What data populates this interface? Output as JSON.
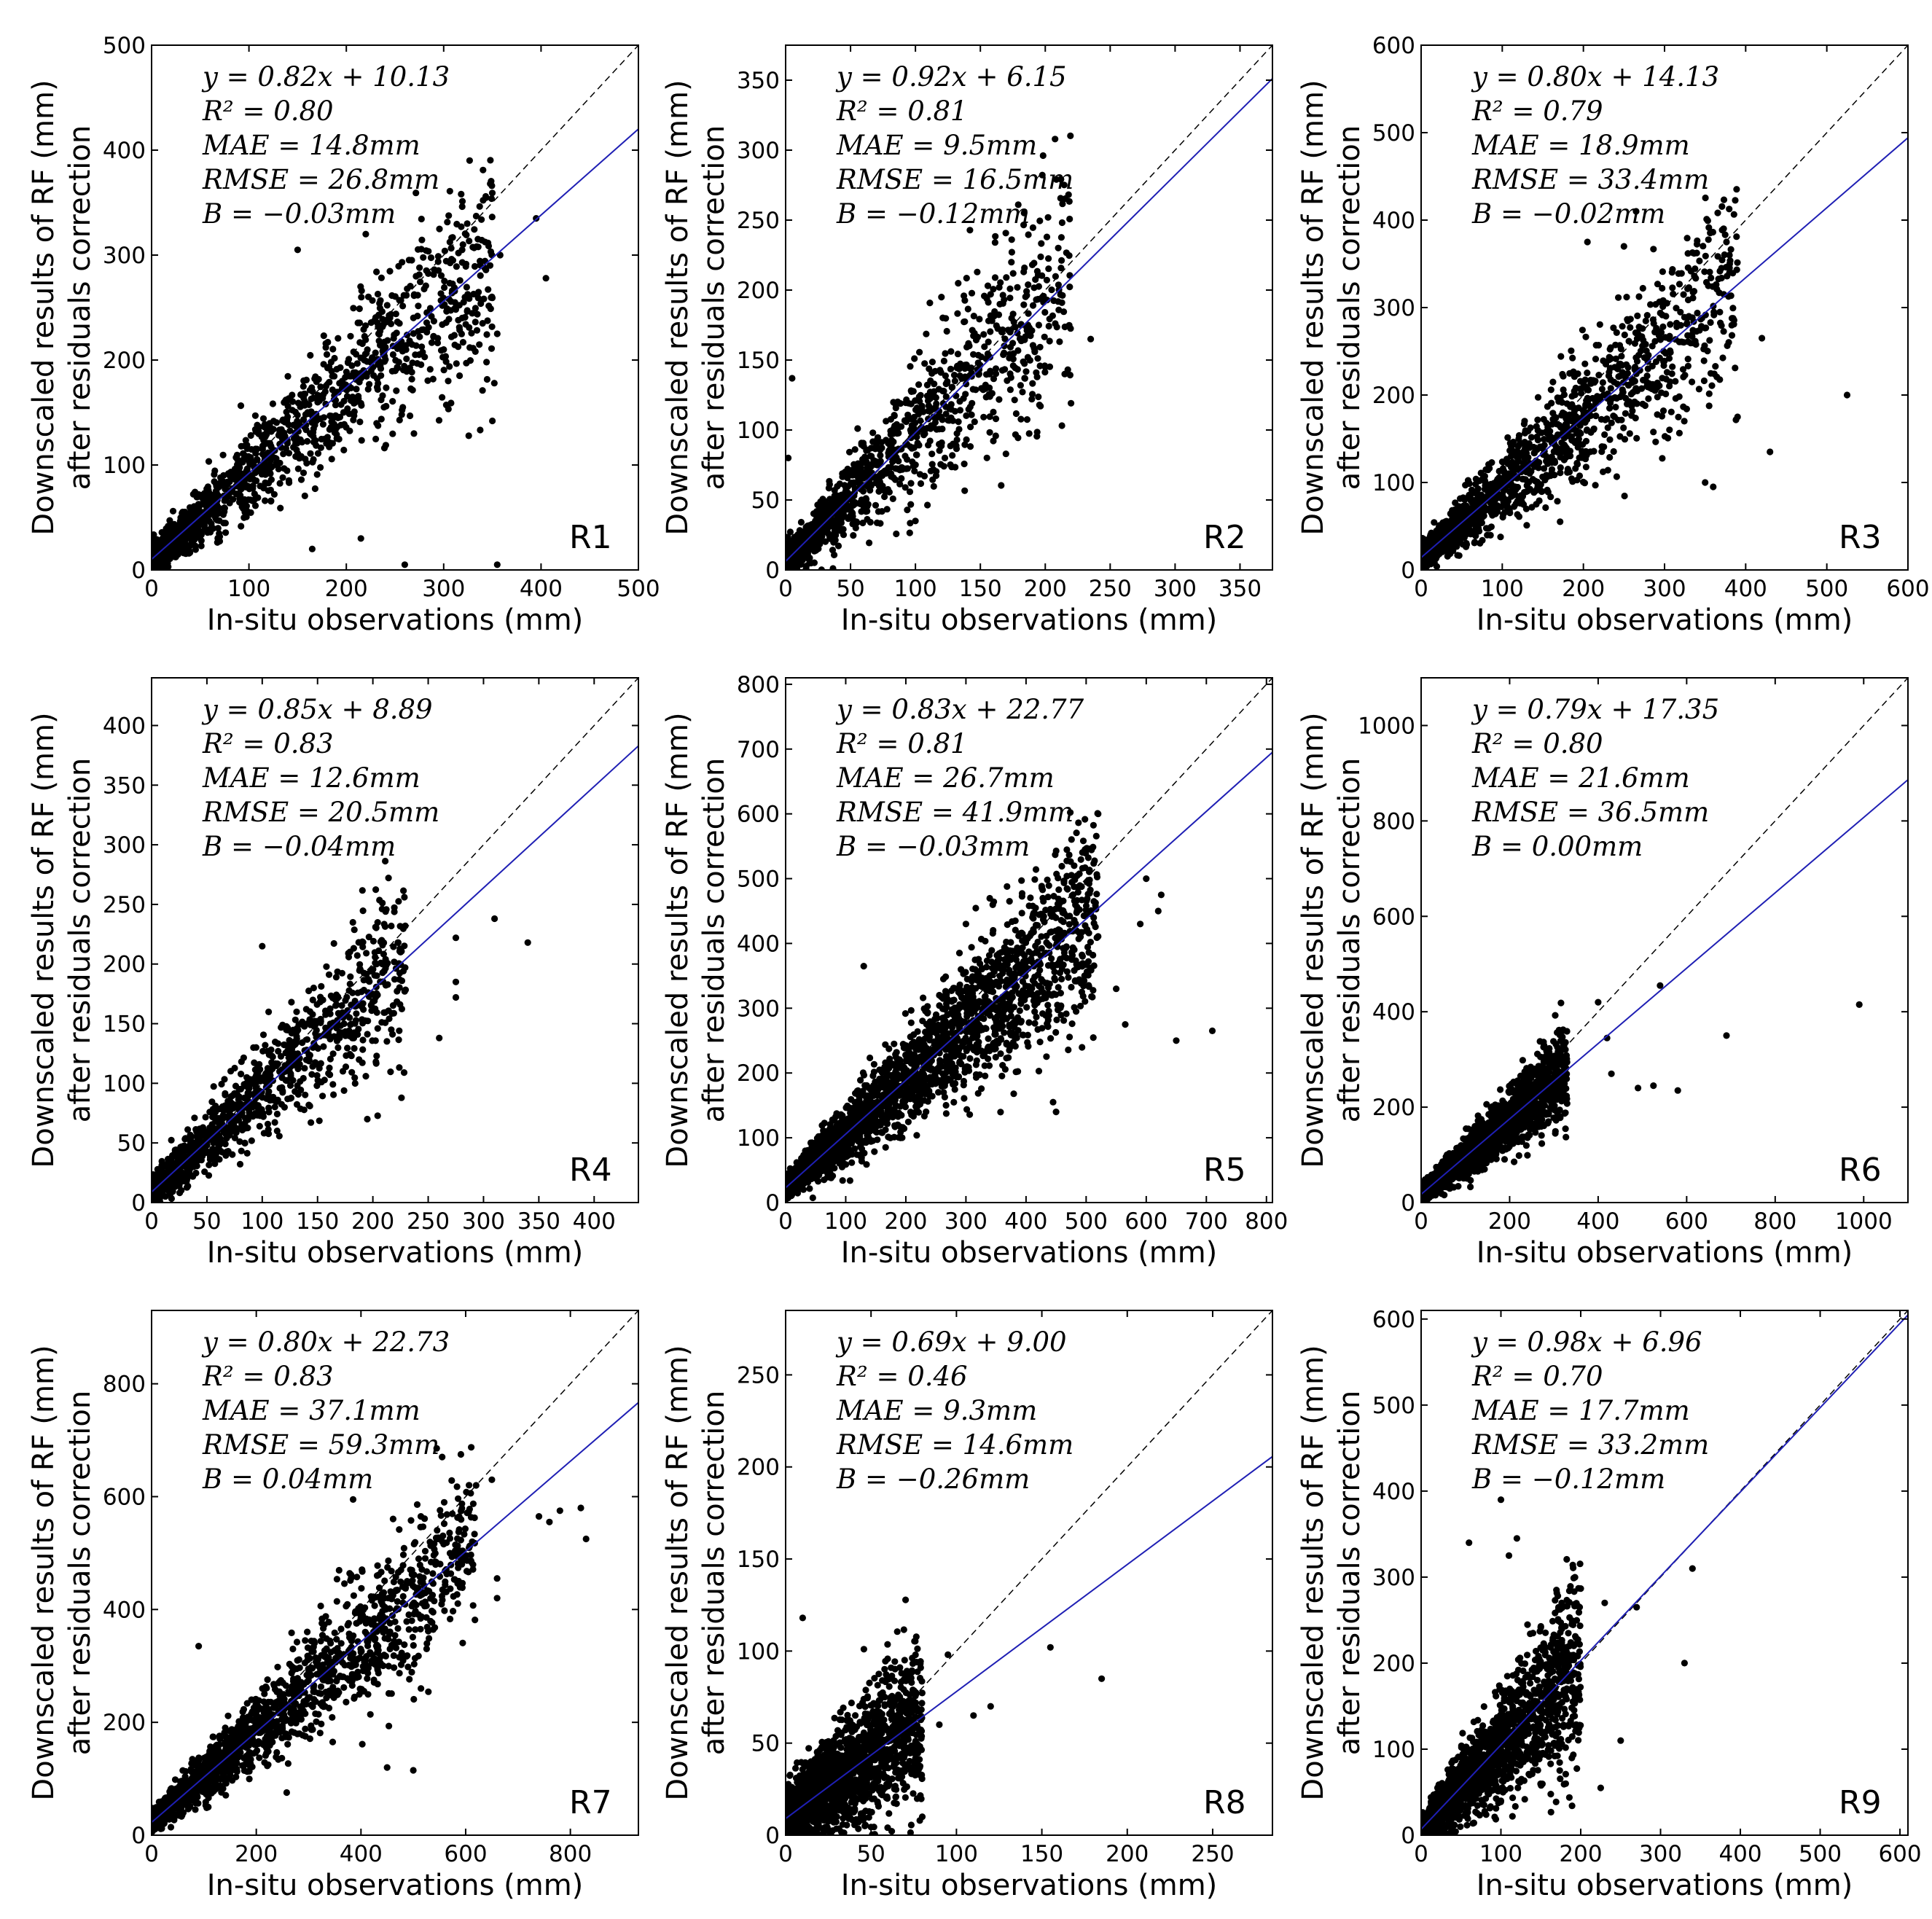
{
  "figure": {
    "xlabel": "In-situ observations (mm)",
    "ylabel_line1": "Downscaled results of RF (mm)",
    "ylabel_line2": "after residuals correction"
  },
  "chart_data": [
    {
      "type": "scatter",
      "region": "R1",
      "xlim": [
        0,
        500
      ],
      "ylim": [
        0,
        500
      ],
      "xticks": [
        0,
        100,
        200,
        300,
        400,
        500
      ],
      "yticks": [
        0,
        100,
        200,
        300,
        400,
        500
      ],
      "fit": {
        "slope": 0.82,
        "intercept": 10.13
      },
      "stats": [
        "y = 0.82x + 10.13",
        "R² = 0.80",
        "MAE = 14.8mm",
        "RMSE = 26.8mm",
        "B = −0.03mm"
      ],
      "scatter_model": {
        "n": 1500,
        "xmax": 350,
        "spread": 0.32,
        "seed": 11
      },
      "points": [
        [
          395,
          335
        ],
        [
          405,
          278
        ],
        [
          358,
          300
        ],
        [
          355,
          225
        ],
        [
          350,
          142
        ],
        [
          352,
          178
        ],
        [
          340,
          235
        ],
        [
          220,
          320
        ],
        [
          215,
          30
        ],
        [
          165,
          20
        ],
        [
          260,
          5
        ],
        [
          355,
          5
        ],
        [
          150,
          305
        ],
        [
          300,
          210
        ]
      ]
    },
    {
      "type": "scatter",
      "region": "R2",
      "xlim": [
        0,
        375
      ],
      "ylim": [
        0,
        375
      ],
      "xticks": [
        0,
        50,
        100,
        150,
        200,
        250,
        300,
        350
      ],
      "yticks": [
        0,
        50,
        100,
        150,
        200,
        250,
        300,
        350
      ],
      "fit": {
        "slope": 0.92,
        "intercept": 6.15
      },
      "stats": [
        "y = 0.92x + 6.15",
        "R² = 0.81",
        "MAE = 9.5mm",
        "RMSE = 16.5mm",
        "B = −0.12mm"
      ],
      "scatter_model": {
        "n": 1300,
        "xmax": 220,
        "spread": 0.36,
        "seed": 23
      },
      "points": [
        [
          190,
          218
        ],
        [
          235,
          165
        ],
        [
          215,
          140
        ],
        [
          200,
          145
        ],
        [
          5,
          137
        ],
        [
          120,
          195
        ],
        [
          195,
          175
        ],
        [
          2,
          80
        ],
        [
          100,
          35
        ]
      ]
    },
    {
      "type": "scatter",
      "region": "R3",
      "xlim": [
        0,
        600
      ],
      "ylim": [
        0,
        600
      ],
      "xticks": [
        0,
        100,
        200,
        300,
        400,
        500,
        600
      ],
      "yticks": [
        0,
        100,
        200,
        300,
        400,
        500,
        600
      ],
      "fit": {
        "slope": 0.8,
        "intercept": 14.13
      },
      "stats": [
        "y = 0.80x + 14.13",
        "R² = 0.79",
        "MAE = 18.9mm",
        "RMSE = 33.4mm",
        "B = −0.02mm"
      ],
      "scatter_model": {
        "n": 1500,
        "xmax": 390,
        "spread": 0.34,
        "seed": 37
      },
      "points": [
        [
          525,
          200
        ],
        [
          430,
          135
        ],
        [
          420,
          265
        ],
        [
          390,
          175
        ],
        [
          380,
          360
        ],
        [
          380,
          340
        ],
        [
          360,
          95
        ],
        [
          350,
          100
        ],
        [
          265,
          410
        ],
        [
          205,
          375
        ],
        [
          250,
          370
        ],
        [
          330,
          290
        ]
      ]
    },
    {
      "type": "scatter",
      "region": "R4",
      "xlim": [
        0,
        440
      ],
      "ylim": [
        0,
        440
      ],
      "xticks": [
        0,
        50,
        100,
        150,
        200,
        250,
        300,
        350,
        400
      ],
      "yticks": [
        0,
        50,
        100,
        150,
        200,
        250,
        300,
        350,
        400
      ],
      "fit": {
        "slope": 0.85,
        "intercept": 8.89
      },
      "stats": [
        "y = 0.85x + 8.89",
        "R² = 0.83",
        "MAE = 12.6mm",
        "RMSE = 20.5mm",
        "B = −0.04mm"
      ],
      "scatter_model": {
        "n": 1300,
        "xmax": 230,
        "spread": 0.3,
        "seed": 41
      },
      "points": [
        [
          340,
          218
        ],
        [
          310,
          238
        ],
        [
          275,
          222
        ],
        [
          275,
          185
        ],
        [
          275,
          172
        ],
        [
          225,
          210
        ],
        [
          260,
          138
        ],
        [
          195,
          70
        ],
        [
          100,
          215
        ]
      ]
    },
    {
      "type": "scatter",
      "region": "R5",
      "xlim": [
        0,
        810
      ],
      "ylim": [
        0,
        810
      ],
      "xticks": [
        0,
        100,
        200,
        300,
        400,
        500,
        600,
        700,
        800
      ],
      "yticks": [
        0,
        100,
        200,
        300,
        400,
        500,
        600,
        700,
        800
      ],
      "fit": {
        "slope": 0.83,
        "intercept": 22.77
      },
      "stats": [
        "y = 0.83x + 22.77",
        "R² = 0.81",
        "MAE = 26.7mm",
        "RMSE = 41.9mm",
        "B = −0.03mm"
      ],
      "scatter_model": {
        "n": 2800,
        "xmax": 520,
        "spread": 0.3,
        "seed": 53
      },
      "points": [
        [
          710,
          265
        ],
        [
          650,
          250
        ],
        [
          625,
          475
        ],
        [
          620,
          450
        ],
        [
          600,
          500
        ],
        [
          565,
          275
        ],
        [
          520,
          600
        ],
        [
          450,
          140
        ],
        [
          445,
          155
        ],
        [
          480,
          520
        ],
        [
          550,
          330
        ],
        [
          590,
          430
        ],
        [
          300,
          430
        ],
        [
          130,
          365
        ]
      ]
    },
    {
      "type": "scatter",
      "region": "R6",
      "xlim": [
        0,
        1100
      ],
      "ylim": [
        0,
        1100
      ],
      "xticks": [
        0,
        200,
        400,
        600,
        800,
        1000
      ],
      "yticks": [
        0,
        200,
        400,
        600,
        800,
        1000
      ],
      "fit": {
        "slope": 0.79,
        "intercept": 17.35
      },
      "stats": [
        "y = 0.79x + 17.35",
        "R² = 0.80",
        "MAE = 21.6mm",
        "RMSE = 36.5mm",
        "B = 0.00mm"
      ],
      "scatter_model": {
        "n": 2600,
        "xmax": 330,
        "spread": 0.3,
        "seed": 67
      },
      "points": [
        [
          990,
          415
        ],
        [
          690,
          350
        ],
        [
          580,
          235
        ],
        [
          525,
          245
        ],
        [
          490,
          240
        ],
        [
          540,
          455
        ],
        [
          400,
          420
        ],
        [
          420,
          345
        ],
        [
          430,
          270
        ]
      ]
    },
    {
      "type": "scatter",
      "region": "R7",
      "xlim": [
        0,
        930
      ],
      "ylim": [
        0,
        930
      ],
      "xticks": [
        0,
        200,
        400,
        600,
        800
      ],
      "yticks": [
        0,
        200,
        400,
        600,
        800
      ],
      "fit": {
        "slope": 0.8,
        "intercept": 22.73
      },
      "stats": [
        "y = 0.80x + 22.73",
        "R² = 0.83",
        "MAE = 37.1mm",
        "RMSE = 59.3mm",
        "B = 0.04mm"
      ],
      "scatter_model": {
        "n": 1900,
        "xmax": 620,
        "spread": 0.28,
        "seed": 79
      },
      "points": [
        [
          830,
          525
        ],
        [
          820,
          580
        ],
        [
          780,
          575
        ],
        [
          760,
          555
        ],
        [
          740,
          565
        ],
        [
          650,
          630
        ],
        [
          660,
          455
        ],
        [
          660,
          420
        ],
        [
          620,
          620
        ],
        [
          385,
          595
        ],
        [
          90,
          335
        ],
        [
          450,
          120
        ],
        [
          500,
          115
        ]
      ]
    },
    {
      "type": "scatter",
      "region": "R8",
      "xlim": [
        0,
        285
      ],
      "ylim": [
        0,
        285
      ],
      "xticks": [
        0,
        50,
        100,
        150,
        200,
        250
      ],
      "yticks": [
        0,
        50,
        100,
        150,
        200,
        250
      ],
      "fit": {
        "slope": 0.69,
        "intercept": 9.0
      },
      "stats": [
        "y = 0.69x + 9.00",
        "R² = 0.46",
        "MAE = 9.3mm",
        "RMSE = 14.6mm",
        "B = −0.26mm"
      ],
      "scatter_model": {
        "n": 2200,
        "xmax": 80,
        "spread": 0.55,
        "seed": 89
      },
      "points": [
        [
          185,
          85
        ],
        [
          155,
          102
        ],
        [
          120,
          70
        ],
        [
          110,
          65
        ],
        [
          95,
          98
        ],
        [
          90,
          60
        ],
        [
          80,
          10
        ],
        [
          10,
          118
        ]
      ]
    },
    {
      "type": "scatter",
      "region": "R9",
      "xlim": [
        0,
        610
      ],
      "ylim": [
        0,
        610
      ],
      "xticks": [
        0,
        100,
        200,
        300,
        400,
        500,
        600
      ],
      "yticks": [
        0,
        100,
        200,
        300,
        400,
        500,
        600
      ],
      "fit": {
        "slope": 0.98,
        "intercept": 6.96
      },
      "stats": [
        "y = 0.98x + 6.96",
        "R² = 0.70",
        "MAE = 17.7mm",
        "RMSE = 33.2mm",
        "B = −0.12mm"
      ],
      "scatter_model": {
        "n": 2300,
        "xmax": 200,
        "spread": 0.5,
        "seed": 97
      },
      "points": [
        [
          340,
          310
        ],
        [
          330,
          200
        ],
        [
          270,
          265
        ],
        [
          250,
          110
        ],
        [
          230,
          270
        ],
        [
          225,
          55
        ],
        [
          100,
          390
        ],
        [
          110,
          325
        ],
        [
          120,
          345
        ],
        [
          60,
          340
        ]
      ]
    }
  ]
}
